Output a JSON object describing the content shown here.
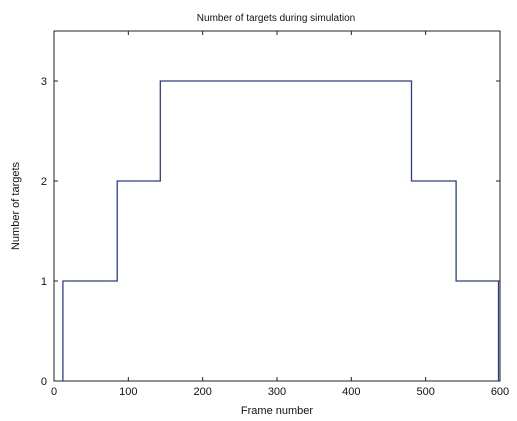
{
  "chart_data": {
    "type": "line",
    "title": "Number of targets during simulation",
    "xlabel": "Frame number",
    "ylabel": "Number of targets",
    "xlim": [
      0,
      600
    ],
    "ylim": [
      0,
      3.5
    ],
    "xticks": [
      0,
      100,
      200,
      300,
      400,
      500,
      600
    ],
    "yticks": [
      0,
      1,
      2,
      3
    ],
    "grid": false,
    "step": true,
    "series": [
      {
        "color": "#2b3d8f",
        "x": [
          12,
          12,
          85,
          85,
          143,
          143,
          481,
          481,
          541,
          541,
          598,
          598
        ],
        "y": [
          0,
          1,
          1,
          2,
          2,
          3,
          3,
          2,
          2,
          1,
          1,
          0
        ]
      }
    ]
  }
}
